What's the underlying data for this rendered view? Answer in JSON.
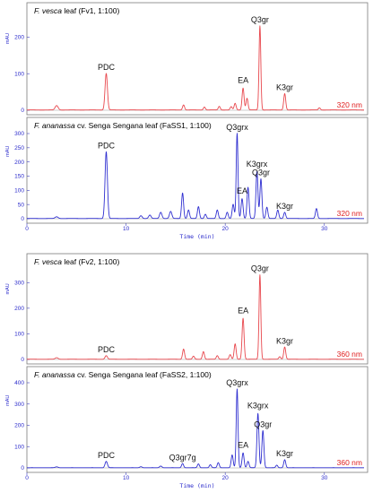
{
  "chart_data": [
    {
      "type": "line",
      "species": "F. vesca",
      "title_rest": " leaf (Fv1, 1:100)",
      "ylabel": "mAU",
      "wavelength": "320 nm",
      "color": "#e8474d",
      "ylim": [
        0,
        250
      ],
      "yticks": [
        "0",
        "100",
        "200"
      ],
      "xlim": [
        0,
        34
      ],
      "peaks": [
        {
          "rt": 3.0,
          "h": 12,
          "w": 0.15
        },
        {
          "rt": 8.0,
          "h": 100,
          "w": 0.12
        },
        {
          "rt": 15.8,
          "h": 14,
          "w": 0.1
        },
        {
          "rt": 17.9,
          "h": 8,
          "w": 0.1
        },
        {
          "rt": 19.4,
          "h": 10,
          "w": 0.1
        },
        {
          "rt": 20.6,
          "h": 9,
          "w": 0.1
        },
        {
          "rt": 21.0,
          "h": 18,
          "w": 0.1
        },
        {
          "rt": 21.8,
          "h": 60,
          "w": 0.1
        },
        {
          "rt": 22.2,
          "h": 32,
          "w": 0.1
        },
        {
          "rt": 23.5,
          "h": 230,
          "w": 0.09
        },
        {
          "rt": 26.0,
          "h": 45,
          "w": 0.1
        },
        {
          "rt": 29.5,
          "h": 6,
          "w": 0.1
        }
      ],
      "labels": [
        {
          "text": "PDC",
          "rt": 8.0,
          "h": 100
        },
        {
          "text": "EA",
          "rt": 21.8,
          "h": 60
        },
        {
          "text": "Q3gr",
          "rt": 23.5,
          "h": 230
        },
        {
          "text": "K3gr",
          "rt": 26.0,
          "h": 45
        }
      ]
    },
    {
      "type": "line",
      "species": "F. ananassa",
      "title_rest": " cv. Senga Sengana leaf (FaSS1, 1:100)",
      "ylabel": "mAU",
      "wavelength": "320 nm",
      "color": "#2f2fd0",
      "ylim": [
        0,
        300
      ],
      "yticks": [
        "0",
        "50",
        "100",
        "150",
        "200",
        "250",
        "300"
      ],
      "xlim": [
        0,
        34
      ],
      "peaks": [
        {
          "rt": 3.0,
          "h": 6,
          "w": 0.15
        },
        {
          "rt": 8.0,
          "h": 235,
          "w": 0.12
        },
        {
          "rt": 11.5,
          "h": 10,
          "w": 0.12
        },
        {
          "rt": 12.4,
          "h": 12,
          "w": 0.12
        },
        {
          "rt": 13.5,
          "h": 22,
          "w": 0.12
        },
        {
          "rt": 14.5,
          "h": 25,
          "w": 0.12
        },
        {
          "rt": 15.7,
          "h": 90,
          "w": 0.1
        },
        {
          "rt": 16.3,
          "h": 30,
          "w": 0.1
        },
        {
          "rt": 17.3,
          "h": 42,
          "w": 0.1
        },
        {
          "rt": 18.0,
          "h": 15,
          "w": 0.1
        },
        {
          "rt": 19.2,
          "h": 30,
          "w": 0.1
        },
        {
          "rt": 20.2,
          "h": 22,
          "w": 0.1
        },
        {
          "rt": 20.8,
          "h": 50,
          "w": 0.1
        },
        {
          "rt": 21.2,
          "h": 300,
          "w": 0.09
        },
        {
          "rt": 21.7,
          "h": 70,
          "w": 0.1
        },
        {
          "rt": 22.3,
          "h": 110,
          "w": 0.1
        },
        {
          "rt": 23.2,
          "h": 165,
          "w": 0.1
        },
        {
          "rt": 23.6,
          "h": 140,
          "w": 0.1
        },
        {
          "rt": 24.2,
          "h": 40,
          "w": 0.1
        },
        {
          "rt": 25.3,
          "h": 30,
          "w": 0.1
        },
        {
          "rt": 26.0,
          "h": 22,
          "w": 0.1
        },
        {
          "rt": 29.2,
          "h": 35,
          "w": 0.1
        }
      ],
      "labels": [
        {
          "text": "PDC",
          "rt": 8.0,
          "h": 235
        },
        {
          "text": "Q3grx",
          "rt": 21.2,
          "h": 300
        },
        {
          "text": "K3grx",
          "rt": 23.2,
          "h": 165
        },
        {
          "text": "EA",
          "rt": 21.7,
          "h": 70
        },
        {
          "text": "Q3gr",
          "rt": 23.6,
          "h": 140
        },
        {
          "text": "K3gr",
          "rt": 26.0,
          "h": 22
        }
      ]
    },
    {
      "type": "line",
      "species": "F. vesca",
      "title_rest": " leaf (Fv2, 1:100)",
      "ylabel": "mAU",
      "wavelength": "360 nm",
      "color": "#e8474d",
      "ylim": [
        0,
        350
      ],
      "yticks": [
        "0",
        "100",
        "200",
        "300"
      ],
      "xlim": [
        0,
        34
      ],
      "peaks": [
        {
          "rt": 3.0,
          "h": 6,
          "w": 0.15
        },
        {
          "rt": 8.0,
          "h": 14,
          "w": 0.12
        },
        {
          "rt": 15.8,
          "h": 40,
          "w": 0.1
        },
        {
          "rt": 16.8,
          "h": 12,
          "w": 0.1
        },
        {
          "rt": 17.8,
          "h": 30,
          "w": 0.1
        },
        {
          "rt": 19.2,
          "h": 14,
          "w": 0.1
        },
        {
          "rt": 20.5,
          "h": 18,
          "w": 0.1
        },
        {
          "rt": 21.0,
          "h": 60,
          "w": 0.1
        },
        {
          "rt": 21.8,
          "h": 160,
          "w": 0.1
        },
        {
          "rt": 23.5,
          "h": 330,
          "w": 0.09
        },
        {
          "rt": 25.5,
          "h": 10,
          "w": 0.1
        },
        {
          "rt": 26.0,
          "h": 48,
          "w": 0.1
        }
      ],
      "labels": [
        {
          "text": "PDC",
          "rt": 8.0,
          "h": 14
        },
        {
          "text": "EA",
          "rt": 21.8,
          "h": 160
        },
        {
          "text": "Q3gr",
          "rt": 23.5,
          "h": 330
        },
        {
          "text": "K3gr",
          "rt": 26.0,
          "h": 48
        }
      ]
    },
    {
      "type": "line",
      "species": "F. ananassa",
      "title_rest": " cv. Senga Sengana leaf (FaSS2, 1:100)",
      "ylabel": "mAU",
      "wavelength": "360 nm",
      "color": "#2f2fd0",
      "ylim": [
        0,
        400
      ],
      "yticks": [
        "0",
        "100",
        "200",
        "300",
        "400"
      ],
      "xlim": [
        0,
        34
      ],
      "peaks": [
        {
          "rt": 3.0,
          "h": 4,
          "w": 0.15
        },
        {
          "rt": 8.0,
          "h": 30,
          "w": 0.12
        },
        {
          "rt": 11.5,
          "h": 5,
          "w": 0.12
        },
        {
          "rt": 13.5,
          "h": 8,
          "w": 0.12
        },
        {
          "rt": 15.7,
          "h": 20,
          "w": 0.1
        },
        {
          "rt": 17.3,
          "h": 18,
          "w": 0.1
        },
        {
          "rt": 18.5,
          "h": 14,
          "w": 0.1
        },
        {
          "rt": 19.3,
          "h": 24,
          "w": 0.1
        },
        {
          "rt": 20.7,
          "h": 60,
          "w": 0.1
        },
        {
          "rt": 21.2,
          "h": 370,
          "w": 0.09
        },
        {
          "rt": 21.8,
          "h": 70,
          "w": 0.1
        },
        {
          "rt": 22.3,
          "h": 30,
          "w": 0.1
        },
        {
          "rt": 23.3,
          "h": 255,
          "w": 0.1
        },
        {
          "rt": 23.8,
          "h": 175,
          "w": 0.1
        },
        {
          "rt": 25.2,
          "h": 12,
          "w": 0.1
        },
        {
          "rt": 26.0,
          "h": 38,
          "w": 0.1
        }
      ],
      "labels": [
        {
          "text": "PDC",
          "rt": 8.0,
          "h": 30
        },
        {
          "text": "Q3gr7g",
          "rt": 15.7,
          "h": 20
        },
        {
          "text": "Q3grx",
          "rt": 21.2,
          "h": 370
        },
        {
          "text": "K3grx",
          "rt": 23.3,
          "h": 255
        },
        {
          "text": "Q3gr",
          "rt": 23.8,
          "h": 175
        },
        {
          "text": "EA",
          "rt": 21.8,
          "h": 70
        },
        {
          "text": "K3gr",
          "rt": 26.0,
          "h": 38
        }
      ]
    }
  ],
  "xaxis_groups": [
    {
      "xlabel": "Time (min)",
      "xticks": [
        "0",
        "10",
        "20",
        "30"
      ]
    },
    {
      "xlabel": "Time (min)",
      "xticks": [
        "0",
        "10",
        "20",
        "30"
      ]
    }
  ]
}
